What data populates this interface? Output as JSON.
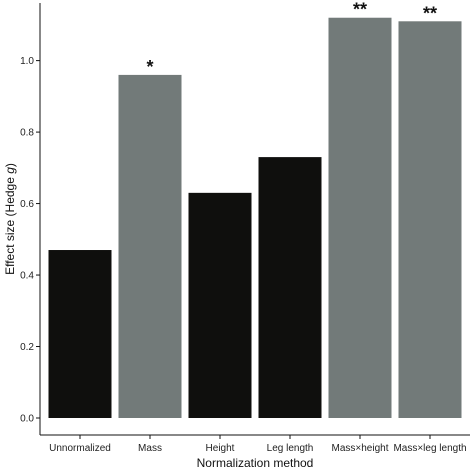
{
  "chart_data": {
    "type": "bar",
    "title": "",
    "xlabel": "Normalization method",
    "ylabel_prefix": "Effect size (Hedge ",
    "ylabel_var": "g",
    "ylabel_suffix": ")",
    "ylim": [
      0,
      1.15
    ],
    "yticks": [
      "0.0",
      "0.2",
      "0.4",
      "0.6",
      "0.8",
      "1.0"
    ],
    "grid": false,
    "legend": "none",
    "categories": [
      "Unnormalized",
      "Mass",
      "Height",
      "Leg length",
      "Mass×height",
      "Mass×leg length"
    ],
    "values": [
      0.47,
      0.96,
      0.63,
      0.73,
      1.12,
      1.11
    ],
    "fill_colors": [
      "#0f0f0d",
      "#727a79",
      "#0f0f0d",
      "#0f0f0d",
      "#727a79",
      "#727a79"
    ],
    "annotations": [
      "",
      "*",
      "",
      "",
      "**",
      "**"
    ]
  }
}
